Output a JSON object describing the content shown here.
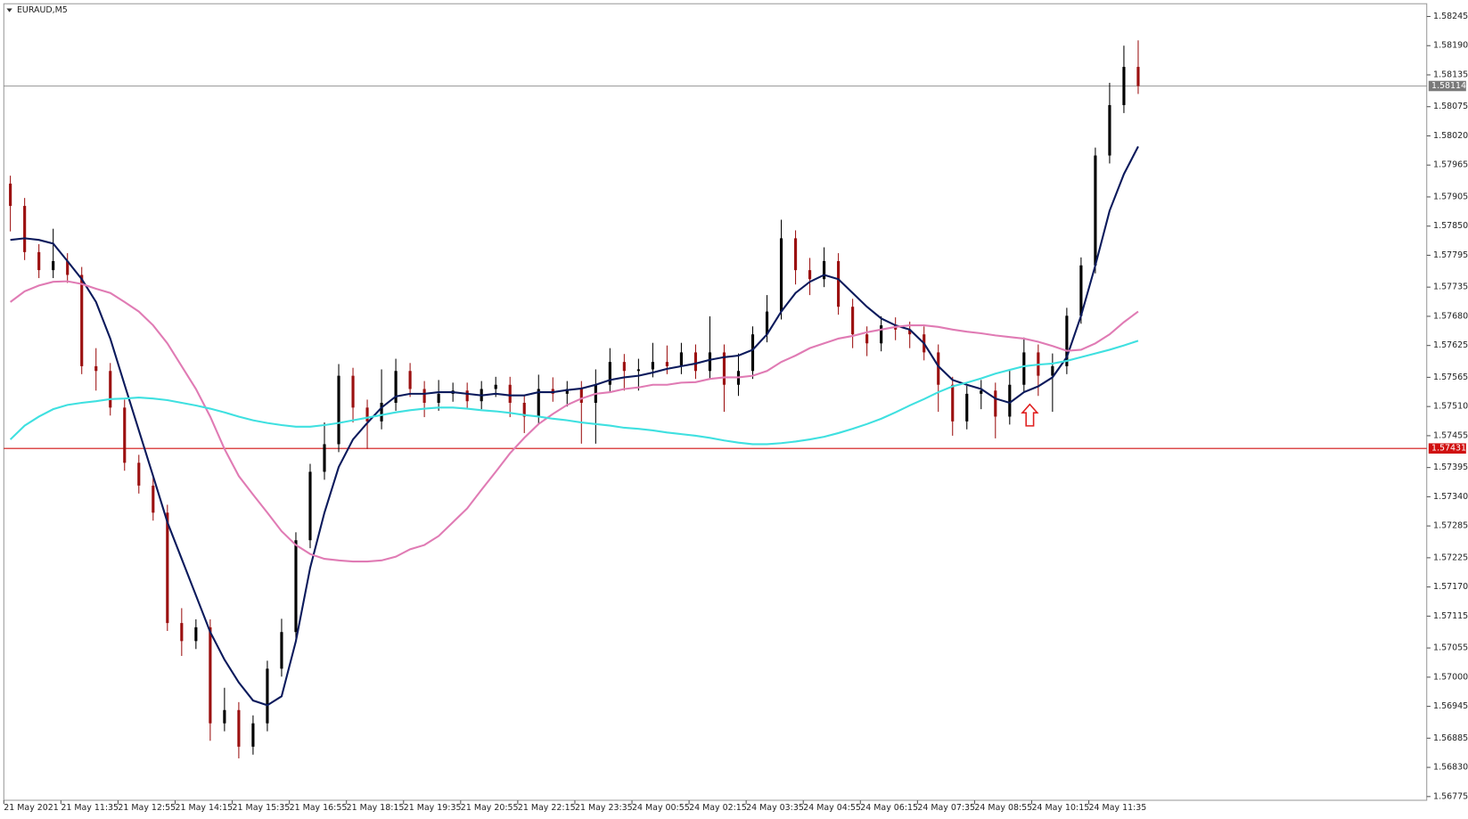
{
  "chart_data": {
    "type": "candlestick",
    "title": "EURAUD,M5",
    "categories": [
      "21 May 2021",
      null,
      null,
      null,
      "21 May 11:35",
      null,
      null,
      null,
      "21 May 12:55",
      null,
      null,
      null,
      "21 May 14:15",
      null,
      null,
      null,
      "21 May 15:35",
      null,
      null,
      null,
      "21 May 16:55",
      null,
      null,
      null,
      "21 May 18:15",
      null,
      null,
      null,
      "21 May 19:35",
      null,
      null,
      null,
      "21 May 20:55",
      null,
      null,
      null,
      "21 May 22:15",
      null,
      null,
      null,
      "21 May 23:35",
      null,
      null,
      null,
      "24 May 00:55",
      null,
      null,
      null,
      "24 May 02:15",
      null,
      null,
      null,
      "24 May 03:35",
      null,
      null,
      null,
      "24 May 04:55",
      null,
      null,
      null,
      "24 May 06:15",
      null,
      null,
      null,
      "24 May 07:35",
      null,
      null,
      null,
      "24 May 08:55",
      null,
      null,
      null,
      "24 May 10:15",
      null,
      null,
      null,
      "24 May 11:35",
      null,
      null,
      null
    ],
    "open": [
      1.5793,
      1.57888,
      1.57801,
      1.57767,
      1.57784,
      1.57758,
      1.57586,
      1.57577,
      1.57508,
      1.57404,
      1.57361,
      1.5731,
      1.57102,
      1.57068,
      1.57094,
      1.56913,
      1.56938,
      1.56869,
      1.56913,
      1.57016,
      1.57085,
      1.57258,
      1.57387,
      1.57439,
      1.57568,
      1.57508,
      1.57482,
      1.57517,
      1.57577,
      1.57543,
      1.57517,
      1.57534,
      1.5754,
      1.5752,
      1.57543,
      1.57551,
      1.57517,
      1.57491,
      1.57543,
      1.57534,
      1.57543,
      1.57517,
      1.57551,
      1.57594,
      1.57577,
      1.5758,
      1.57594,
      1.57586,
      1.57612,
      1.57577,
      1.57612,
      1.57551,
      1.57577,
      1.57646,
      1.57689,
      1.57827,
      1.57767,
      1.5775,
      1.57784,
      1.57698,
      1.57646,
      1.57629,
      1.57663,
      1.57655,
      1.57646,
      1.57612,
      1.57551,
      1.57482,
      1.57534,
      1.5754,
      1.57491,
      1.57551,
      1.57612,
      1.57568,
      1.57586,
      1.57681,
      1.57776,
      1.57983,
      1.58078,
      1.5815
    ],
    "high": [
      1.57945,
      1.57903,
      1.57816,
      1.57845,
      1.57799,
      1.57773,
      1.5762,
      1.57592,
      1.57523,
      1.57419,
      1.57376,
      1.57325,
      1.5713,
      1.57109,
      1.57109,
      1.5698,
      1.56953,
      1.56928,
      1.57031,
      1.5711,
      1.57273,
      1.57402,
      1.5748,
      1.5759,
      1.57583,
      1.57523,
      1.5758,
      1.576,
      1.57592,
      1.57558,
      1.5756,
      1.57555,
      1.57555,
      1.57558,
      1.57566,
      1.57566,
      1.57532,
      1.5757,
      1.57565,
      1.57558,
      1.57558,
      1.5758,
      1.5762,
      1.57609,
      1.576,
      1.5763,
      1.57625,
      1.5763,
      1.57627,
      1.5768,
      1.57627,
      1.5761,
      1.57661,
      1.5772,
      1.57862,
      1.57842,
      1.5779,
      1.5781,
      1.57799,
      1.57713,
      1.57661,
      1.5768,
      1.57678,
      1.5767,
      1.57661,
      1.57627,
      1.57566,
      1.57549,
      1.5756,
      1.57555,
      1.5758,
      1.5764,
      1.57627,
      1.5761,
      1.57696,
      1.57791,
      1.57998,
      1.5812,
      1.5819,
      1.582
    ],
    "low": [
      1.5784,
      1.57786,
      1.57752,
      1.57752,
      1.57743,
      1.57571,
      1.5754,
      1.57493,
      1.57389,
      1.57346,
      1.57295,
      1.57087,
      1.5704,
      1.57053,
      1.5688,
      1.56898,
      1.56847,
      1.56854,
      1.56898,
      1.57001,
      1.5707,
      1.57243,
      1.57372,
      1.57424,
      1.5748,
      1.5743,
      1.57467,
      1.57502,
      1.57528,
      1.5749,
      1.57502,
      1.57519,
      1.57505,
      1.57505,
      1.57528,
      1.5749,
      1.5746,
      1.57476,
      1.57519,
      1.5751,
      1.5744,
      1.5744,
      1.57536,
      1.5754,
      1.5754,
      1.57565,
      1.57571,
      1.57571,
      1.57562,
      1.57562,
      1.575,
      1.5753,
      1.57562,
      1.57631,
      1.57674,
      1.5774,
      1.5772,
      1.57735,
      1.57683,
      1.5762,
      1.57605,
      1.57614,
      1.57635,
      1.5762,
      1.57597,
      1.575,
      1.57455,
      1.57467,
      1.57505,
      1.5745,
      1.57476,
      1.57536,
      1.5753,
      1.575,
      1.57571,
      1.57666,
      1.57761,
      1.57968,
      1.58063,
      1.58099
    ],
    "close": [
      1.57888,
      1.57801,
      1.57767,
      1.57784,
      1.57758,
      1.57586,
      1.57577,
      1.57508,
      1.57404,
      1.57361,
      1.5731,
      1.57102,
      1.57068,
      1.57094,
      1.56913,
      1.56938,
      1.56869,
      1.56913,
      1.57016,
      1.57085,
      1.57258,
      1.57387,
      1.57439,
      1.57568,
      1.57508,
      1.57482,
      1.57517,
      1.57577,
      1.57543,
      1.57517,
      1.57534,
      1.5754,
      1.5752,
      1.57543,
      1.57551,
      1.57517,
      1.57491,
      1.57543,
      1.57534,
      1.57543,
      1.57517,
      1.57551,
      1.57594,
      1.57577,
      1.5758,
      1.57594,
      1.57586,
      1.57612,
      1.57577,
      1.57612,
      1.57551,
      1.57577,
      1.57646,
      1.57689,
      1.57827,
      1.57767,
      1.5775,
      1.57784,
      1.57698,
      1.57646,
      1.57629,
      1.57663,
      1.57655,
      1.57646,
      1.57612,
      1.57551,
      1.57482,
      1.57534,
      1.5754,
      1.57491,
      1.57551,
      1.57612,
      1.57568,
      1.57586,
      1.57681,
      1.57776,
      1.57983,
      1.58078,
      1.5815,
      1.58114
    ],
    "up_color": "#000000",
    "down_color": "#9b1010",
    "lines": [
      {
        "color": "#0b1a5c",
        "values": [
          1.57824,
          1.57827,
          1.57824,
          1.57817,
          1.57784,
          1.5775,
          1.57707,
          1.57638,
          1.57551,
          1.57465,
          1.57379,
          1.57292,
          1.57223,
          1.57154,
          1.57085,
          1.57033,
          1.5699,
          1.56956,
          1.56947,
          1.56964,
          1.57068,
          1.57206,
          1.5731,
          1.57396,
          1.57448,
          1.57479,
          1.57508,
          1.57529,
          1.57534,
          1.57534,
          1.57537,
          1.57537,
          1.57534,
          1.57531,
          1.57534,
          1.57531,
          1.57531,
          1.57537,
          1.57537,
          1.57541,
          1.57544,
          1.57551,
          1.5756,
          1.57565,
          1.57568,
          1.57574,
          1.57581,
          1.57586,
          1.57591,
          1.57598,
          1.57603,
          1.57606,
          1.57617,
          1.57646,
          1.57689,
          1.57724,
          1.57745,
          1.57758,
          1.5775,
          1.57724,
          1.57698,
          1.57676,
          1.57663,
          1.57655,
          1.57629,
          1.57586,
          1.5756,
          1.57551,
          1.57543,
          1.57525,
          1.57517,
          1.57537,
          1.57548,
          1.57565,
          1.57603,
          1.57681,
          1.57776,
          1.57879,
          1.57948,
          1.58
        ]
      },
      {
        "color": "#e07bb4",
        "values": [
          1.57707,
          1.57727,
          1.57738,
          1.57745,
          1.57746,
          1.57741,
          1.57732,
          1.57724,
          1.57707,
          1.57689,
          1.57663,
          1.57629,
          1.57586,
          1.57543,
          1.57491,
          1.5743,
          1.57379,
          1.57344,
          1.5731,
          1.57275,
          1.57249,
          1.57232,
          1.57223,
          1.5722,
          1.57218,
          1.57218,
          1.5722,
          1.57227,
          1.57241,
          1.57249,
          1.57266,
          1.57292,
          1.57318,
          1.57353,
          1.57387,
          1.57422,
          1.57451,
          1.57477,
          1.57496,
          1.57513,
          1.57525,
          1.57534,
          1.57537,
          1.57543,
          1.57546,
          1.57551,
          1.57551,
          1.57555,
          1.57556,
          1.57562,
          1.57565,
          1.57565,
          1.57568,
          1.57577,
          1.57594,
          1.57606,
          1.5762,
          1.57629,
          1.57638,
          1.57643,
          1.5765,
          1.57655,
          1.5766,
          1.57663,
          1.57663,
          1.5766,
          1.57655,
          1.57651,
          1.57648,
          1.57644,
          1.57641,
          1.57638,
          1.57632,
          1.57624,
          1.57615,
          1.57617,
          1.57629,
          1.57646,
          1.57669,
          1.57689
        ]
      },
      {
        "color": "#3fe0e0",
        "values": [
          1.57448,
          1.57474,
          1.57491,
          1.57505,
          1.57513,
          1.57517,
          1.5752,
          1.57524,
          1.57525,
          1.57527,
          1.57525,
          1.57522,
          1.57517,
          1.57512,
          1.57506,
          1.57499,
          1.57491,
          1.57484,
          1.57479,
          1.57475,
          1.57472,
          1.57472,
          1.57475,
          1.57479,
          1.57484,
          1.57489,
          1.57494,
          1.57499,
          1.57503,
          1.57506,
          1.57508,
          1.57508,
          1.57506,
          1.57503,
          1.57501,
          1.57498,
          1.57494,
          1.57491,
          1.57487,
          1.57484,
          1.5748,
          1.57477,
          1.57474,
          1.5747,
          1.57468,
          1.57465,
          1.57461,
          1.57458,
          1.57455,
          1.57451,
          1.57446,
          1.57442,
          1.57439,
          1.57439,
          1.57441,
          1.57444,
          1.57448,
          1.57453,
          1.5746,
          1.57468,
          1.57477,
          1.57487,
          1.57499,
          1.57512,
          1.57524,
          1.57537,
          1.57548,
          1.57555,
          1.57563,
          1.57572,
          1.57579,
          1.57586,
          1.57589,
          1.57591,
          1.57596,
          1.57603,
          1.5761,
          1.57617,
          1.57625,
          1.57634
        ]
      }
    ],
    "price_lines": [
      {
        "value": 1.58114,
        "color": "#7a7a7a"
      },
      {
        "value": 1.57431,
        "color": "#d01010"
      }
    ],
    "ylim": [
      1.56768,
      1.58269
    ],
    "yticks": [
      1.58245,
      {
        "value": 1.5819,
        "label": "1.58190"
      },
      1.58135,
      1.58075,
      {
        "value": 1.5802,
        "label": "1.58020"
      },
      1.57965,
      1.57905,
      {
        "value": 1.5785,
        "label": "1.57850"
      },
      1.57795,
      1.57735,
      {
        "value": 1.5768,
        "label": "1.57680"
      },
      1.57625,
      1.57565,
      {
        "value": 1.5751,
        "label": "1.57510"
      },
      1.57455,
      1.57395,
      {
        "value": 1.5734,
        "label": "1.57340"
      },
      1.57285,
      1.57225,
      {
        "value": 1.5717,
        "label": "1.57170"
      },
      1.57115,
      1.57055,
      {
        "value": 1.57,
        "label": "1.57000"
      },
      1.56945,
      1.56885,
      {
        "value": 1.5683,
        "label": "1.56830"
      },
      1.56775
    ],
    "grid": false
  }
}
